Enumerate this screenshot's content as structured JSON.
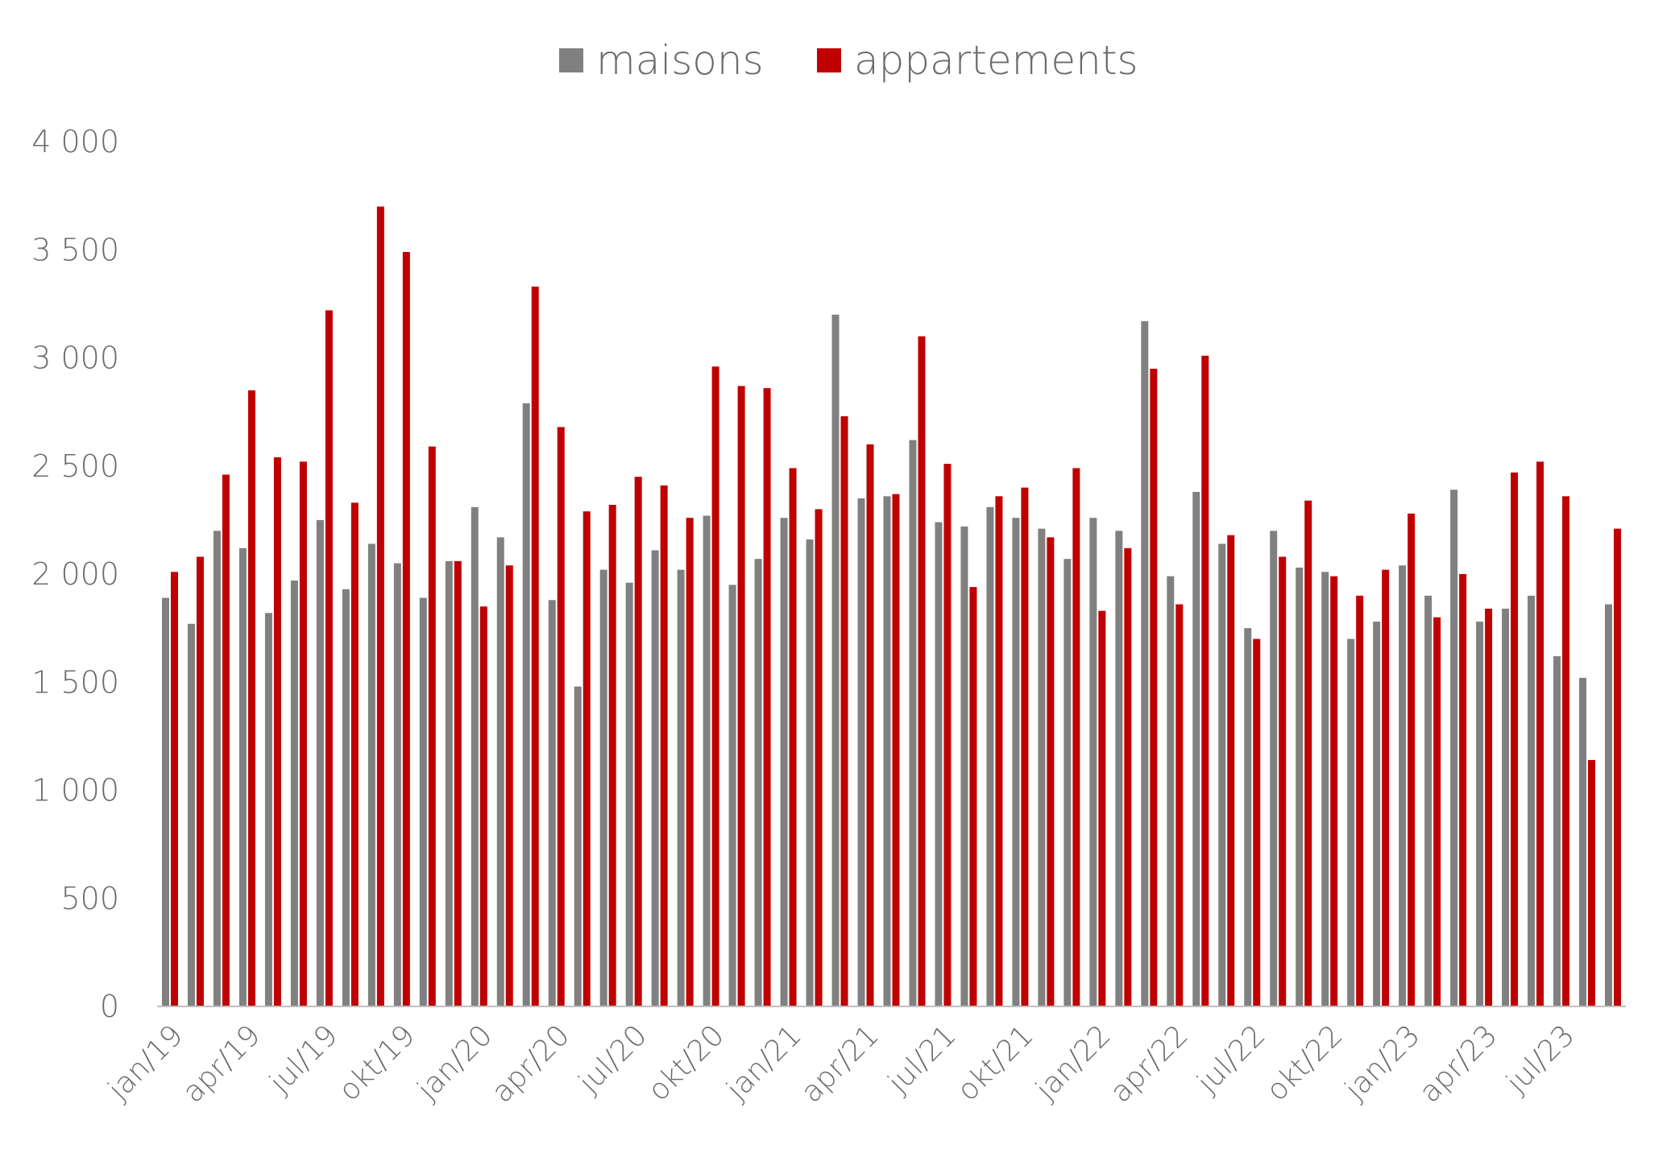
{
  "chart_data": {
    "type": "bar",
    "title": "",
    "xlabel": "",
    "ylabel": "",
    "ylim": [
      0,
      4000
    ],
    "yticks": [
      0,
      500,
      1000,
      1500,
      2000,
      2500,
      3000,
      3500,
      4000
    ],
    "ytick_labels": [
      "0",
      "500",
      "1 000",
      "1 500",
      "2 000",
      "2 500",
      "3 000",
      "3 500",
      "4 000"
    ],
    "grid": false,
    "legend_position": "top-center",
    "categories": [
      "jan/19",
      "feb/19",
      "mar/19",
      "apr/19",
      "mai/19",
      "jun/19",
      "jul/19",
      "aug/19",
      "sep/19",
      "okt/19",
      "nov/19",
      "des/19",
      "jan/20",
      "feb/20",
      "mar/20",
      "apr/20",
      "mai/20",
      "jun/20",
      "jul/20",
      "aug/20",
      "sep/20",
      "okt/20",
      "nov/20",
      "des/20",
      "jan/21",
      "feb/21",
      "mar/21",
      "apr/21",
      "mai/21",
      "jun/21",
      "jul/21",
      "aug/21",
      "sep/21",
      "okt/21",
      "nov/21",
      "des/21",
      "jan/22",
      "feb/22",
      "mar/22",
      "apr/22",
      "mai/22",
      "jun/22",
      "jul/22",
      "aug/22",
      "sep/22",
      "okt/22",
      "nov/22",
      "des/22",
      "jan/23",
      "feb/23",
      "mar/23",
      "apr/23",
      "mai/23",
      "jun/23",
      "jul/23",
      "aug/23",
      "sep/23"
    ],
    "x_tick_labels": [
      "jan/19",
      "",
      "",
      "apr/19",
      "",
      "",
      "jul/19",
      "",
      "",
      "okt/19",
      "",
      "",
      "jan/20",
      "",
      "",
      "apr/20",
      "",
      "",
      "jul/20",
      "",
      "",
      "okt/20",
      "",
      "",
      "jan/21",
      "",
      "",
      "apr/21",
      "",
      "",
      "jul/21",
      "",
      "",
      "okt/21",
      "",
      "",
      "jan/22",
      "",
      "",
      "apr/22",
      "",
      "",
      "jul/22",
      "",
      "",
      "okt/22",
      "",
      "",
      "jan/23",
      "",
      "",
      "apr/23",
      "",
      "",
      "jul/23",
      "",
      ""
    ],
    "series": [
      {
        "name": "maisons",
        "color": "#808080",
        "values": [
          1890,
          1770,
          2200,
          2120,
          1820,
          1970,
          2250,
          1930,
          2140,
          2050,
          1890,
          2060,
          2310,
          2170,
          2790,
          1880,
          1480,
          2020,
          1960,
          2110,
          2020,
          2270,
          1950,
          2070,
          2260,
          2160,
          3200,
          2350,
          2360,
          2620,
          2240,
          2220,
          2310,
          2260,
          2210,
          2070,
          2260,
          2200,
          3170,
          1990,
          2380,
          2140,
          1750,
          2200,
          2030,
          2010,
          1700,
          1780,
          2040,
          1900,
          2390,
          1780,
          1840,
          1900,
          1620,
          1520,
          1860
        ]
      },
      {
        "name": "appartements",
        "color": "#c00000",
        "values": [
          2010,
          2080,
          2460,
          2850,
          2540,
          2520,
          3220,
          2330,
          3700,
          3490,
          2590,
          2060,
          1850,
          2040,
          3330,
          2680,
          2290,
          2320,
          2450,
          2410,
          2260,
          2960,
          2870,
          2860,
          2490,
          2300,
          2730,
          2600,
          2370,
          3100,
          2510,
          1940,
          2360,
          2400,
          2170,
          2490,
          1830,
          2120,
          2950,
          1860,
          3010,
          2180,
          1700,
          2080,
          2340,
          1990,
          1900,
          2020,
          2280,
          1800,
          2000,
          1840,
          2470,
          2520,
          2360,
          1140,
          2210
        ]
      }
    ]
  }
}
